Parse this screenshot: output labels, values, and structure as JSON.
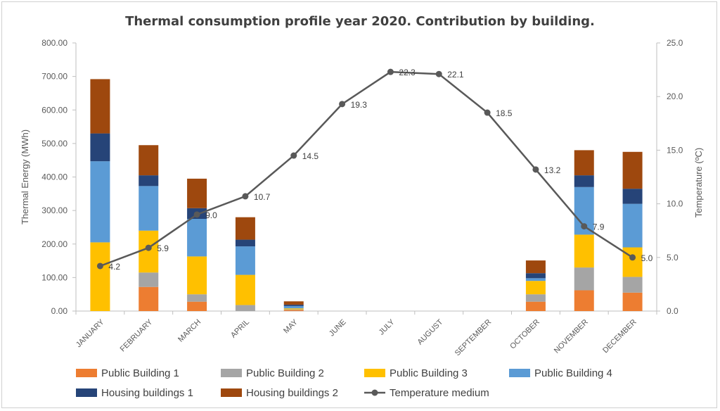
{
  "chart_data": {
    "type": "bar",
    "stacked": true,
    "title": "Thermal consumption profile year 2020. Contribution by building.",
    "ylabel": "Thermal Energy (MWh)",
    "y2label": "Temperature (ºC)",
    "ylim": [
      0,
      800
    ],
    "y2lim": [
      0,
      25
    ],
    "yticks": [
      "0.00",
      "100.00",
      "200.00",
      "300.00",
      "400.00",
      "500.00",
      "600.00",
      "700.00",
      "800.00"
    ],
    "y2ticks": [
      "0.0",
      "5.0",
      "10.0",
      "15.0",
      "20.0",
      "25.0"
    ],
    "categories": [
      "JANUARY",
      "FEBRUARY",
      "MARCH",
      "APRIL",
      "MAY",
      "JUNE",
      "JULY",
      "AUGUST",
      "SEPTEMBER",
      "OCTOBER",
      "NOVEMBER",
      "DECEMBER"
    ],
    "series": [
      {
        "name": "Public Building 1",
        "color": "#ED7D31",
        "values": [
          0,
          72,
          28,
          0,
          3,
          0,
          0,
          0,
          0,
          28,
          62,
          55
        ]
      },
      {
        "name": "Public Building 2",
        "color": "#A5A5A5",
        "values": [
          0,
          43,
          22,
          18,
          2,
          0,
          0,
          0,
          0,
          22,
          68,
          47
        ]
      },
      {
        "name": "Public Building 3",
        "color": "#FFC000",
        "values": [
          205,
          125,
          113,
          90,
          3,
          0,
          0,
          0,
          0,
          40,
          98,
          88
        ]
      },
      {
        "name": "Public Building 4",
        "color": "#5B9BD5",
        "values": [
          242,
          133,
          112,
          85,
          7,
          0,
          0,
          0,
          0,
          8,
          142,
          130
        ]
      },
      {
        "name": "Housing buildings 1",
        "color": "#264478",
        "values": [
          83,
          32,
          32,
          20,
          4,
          0,
          0,
          0,
          0,
          15,
          35,
          45
        ]
      },
      {
        "name": "Housing buildings 2",
        "color": "#9E480E",
        "values": [
          162,
          90,
          88,
          67,
          10,
          0,
          0,
          0,
          0,
          38,
          75,
          110
        ]
      }
    ],
    "line_series": {
      "name": "Temperature medium",
      "color": "#595959",
      "axis": "secondary",
      "values": [
        4.2,
        5.9,
        9.0,
        10.7,
        14.5,
        19.3,
        22.3,
        22.1,
        18.5,
        13.2,
        7.9,
        5.0
      ],
      "labels": [
        "4.2",
        "5.9",
        "9.0",
        "10.7",
        "14.5",
        "19.3",
        "22.3",
        "22.1",
        "18.5",
        "13.2",
        "7.9",
        "5.0"
      ]
    },
    "legend_position": "bottom",
    "grid": false
  }
}
